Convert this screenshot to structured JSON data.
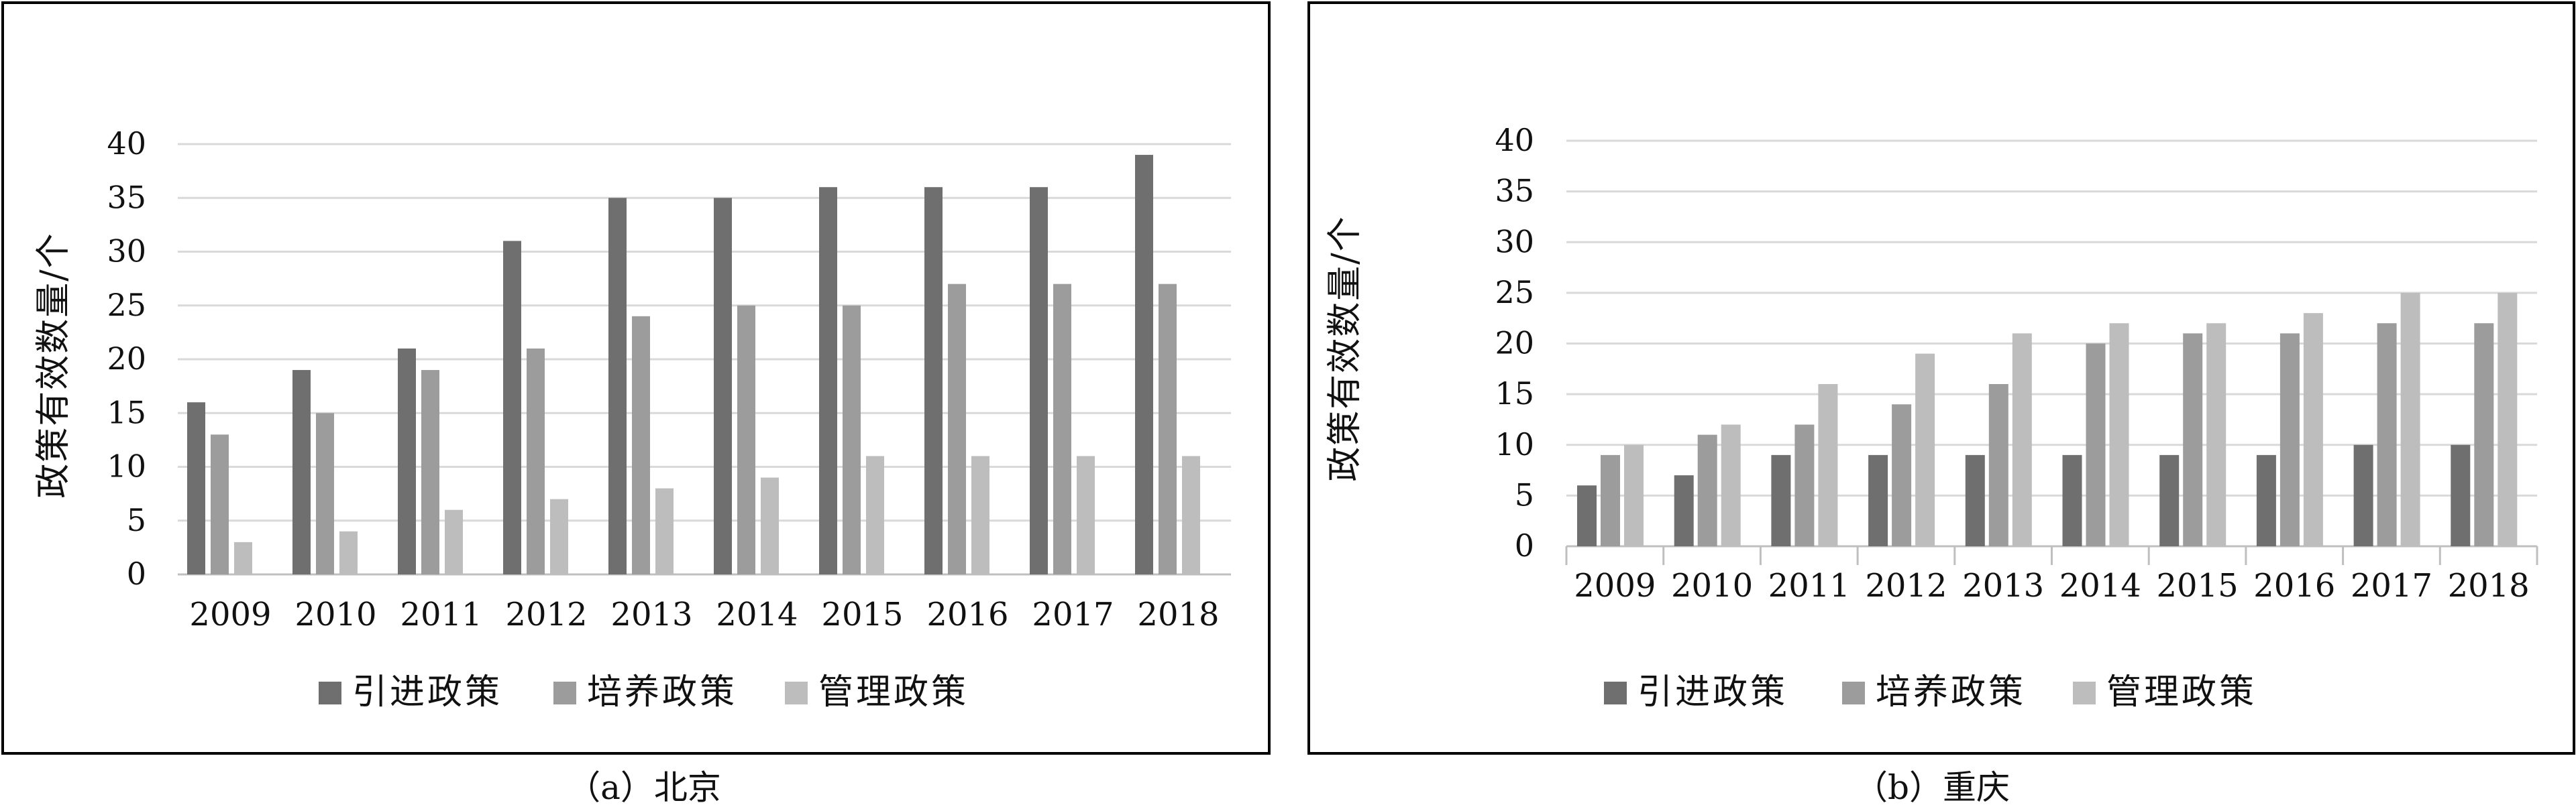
{
  "colors": {
    "frame": "#000000",
    "grid": "#d9d9d9",
    "axis": "#bfbfbf",
    "text": "#111111",
    "引进政策": "#6f6f6f",
    "培养政策": "#9c9c9c",
    "管理政策": "#bdbdbd"
  },
  "chart_data": [
    {
      "type": "bar",
      "caption": "（a）北京",
      "ylabel": "政策有效数量/个",
      "xlabel": "",
      "ylim": [
        0,
        40
      ],
      "yticks": [
        0,
        5,
        10,
        15,
        20,
        25,
        30,
        35,
        40
      ],
      "grid": true,
      "legend_position": "bottom",
      "categories": [
        "2009",
        "2010",
        "2011",
        "2012",
        "2013",
        "2014",
        "2015",
        "2016",
        "2017",
        "2018"
      ],
      "series": [
        {
          "name": "引进政策",
          "values": [
            16,
            19,
            21,
            31,
            35,
            35,
            36,
            36,
            36,
            39
          ]
        },
        {
          "name": "培养政策",
          "values": [
            13,
            15,
            19,
            21,
            24,
            25,
            25,
            27,
            27,
            27
          ]
        },
        {
          "name": "管理政策",
          "values": [
            3,
            4,
            6,
            7,
            8,
            9,
            11,
            11,
            11,
            11
          ]
        }
      ]
    },
    {
      "type": "bar",
      "caption": "（b）重庆",
      "ylabel": "政策有效数量/个",
      "xlabel": "",
      "ylim": [
        0,
        40
      ],
      "yticks": [
        0,
        5,
        10,
        15,
        20,
        25,
        30,
        35,
        40
      ],
      "grid": true,
      "legend_position": "bottom",
      "categories": [
        "2009",
        "2010",
        "2011",
        "2012",
        "2013",
        "2014",
        "2015",
        "2016",
        "2017",
        "2018"
      ],
      "series": [
        {
          "name": "引进政策",
          "values": [
            6,
            7,
            9,
            9,
            9,
            9,
            9,
            9,
            10,
            10
          ]
        },
        {
          "name": "培养政策",
          "values": [
            9,
            11,
            12,
            14,
            16,
            20,
            21,
            21,
            22,
            22
          ]
        },
        {
          "name": "管理政策",
          "values": [
            10,
            12,
            16,
            19,
            21,
            22,
            22,
            23,
            25,
            25
          ]
        }
      ]
    }
  ]
}
